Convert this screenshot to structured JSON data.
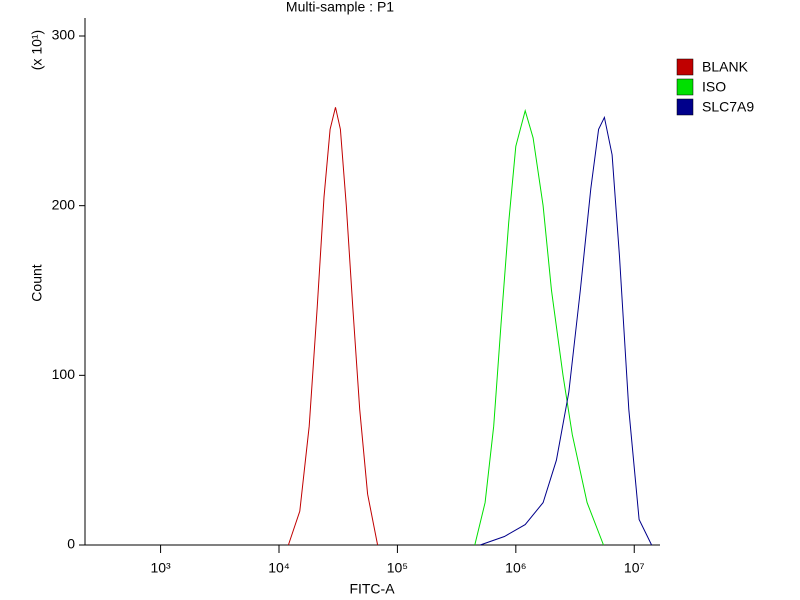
{
  "chart_data": {
    "type": "line",
    "title": "Multi-sample : P1",
    "x_label": "FITC-A",
    "y_label": "Count",
    "y_multiplier": "(x 10¹)",
    "xscale": "log",
    "xlim": [
      230,
      16500000
    ],
    "xticks": [
      {
        "value": 1000,
        "label": "10³"
      },
      {
        "value": 10000,
        "label": "10⁴"
      },
      {
        "value": 100000,
        "label": "10⁵"
      },
      {
        "value": 1000000,
        "label": "10⁶"
      },
      {
        "value": 10000000,
        "label": "10⁷"
      }
    ],
    "ylim": [
      0,
      300
    ],
    "yticks": [
      0,
      100,
      200,
      300
    ],
    "grid": false,
    "legend": "right",
    "series": [
      {
        "name": "BLANK",
        "color": "#c00000",
        "x": [
          12000,
          15000,
          18000,
          21000,
          24000,
          27000,
          30000,
          33000,
          37000,
          42000,
          48000,
          56000,
          68000
        ],
        "values": [
          0,
          20,
          70,
          140,
          205,
          245,
          258,
          245,
          200,
          140,
          80,
          30,
          0
        ]
      },
      {
        "name": "ISO",
        "color": "#00e000",
        "x": [
          450000,
          550000,
          650000,
          750000,
          870000,
          1000000,
          1200000,
          1400000,
          1700000,
          2000000,
          2500000,
          3000000,
          4000000,
          5500000
        ],
        "values": [
          0,
          25,
          70,
          130,
          190,
          235,
          256,
          240,
          200,
          150,
          100,
          65,
          25,
          0
        ]
      },
      {
        "name": "SLC7A9",
        "color": "#00008b",
        "x": [
          500000,
          800000,
          1200000,
          1700000,
          2200000,
          2800000,
          3500000,
          4300000,
          5000000,
          5600000,
          6500000,
          7500000,
          9000000,
          11000000,
          14000000
        ],
        "values": [
          0,
          5,
          12,
          25,
          50,
          90,
          150,
          210,
          245,
          252,
          230,
          170,
          80,
          15,
          0
        ]
      }
    ]
  }
}
